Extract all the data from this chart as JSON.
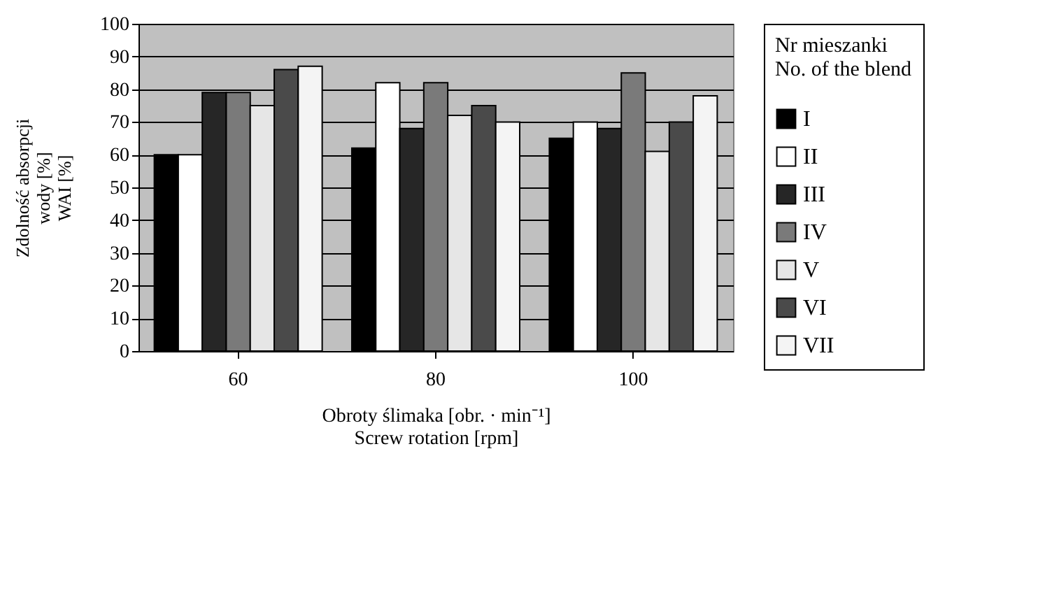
{
  "chart_data": {
    "type": "bar",
    "xlabel": "Obroty ślimaka [obr. · min⁻¹]\nScrew rotation [rpm]",
    "ylabel": "Zdolność absorpcji\nwody [%]\nWAI [%]",
    "legend_title": "Nr mieszanki\nNo. of the blend",
    "categories": [
      "60",
      "80",
      "100"
    ],
    "ylim": [
      0,
      100
    ],
    "yticks": [
      0,
      10,
      20,
      30,
      40,
      50,
      60,
      70,
      80,
      90,
      100
    ],
    "grid": "y",
    "legend": "right",
    "series": [
      {
        "name": "I",
        "color": "#000000",
        "values": [
          60,
          62,
          65
        ]
      },
      {
        "name": "II",
        "color": "#ffffff",
        "values": [
          60,
          82,
          70
        ]
      },
      {
        "name": "III",
        "color": "#262626",
        "values": [
          79,
          68,
          68
        ]
      },
      {
        "name": "IV",
        "color": "#7a7a7a",
        "values": [
          79,
          82,
          85
        ]
      },
      {
        "name": "V",
        "color": "#e6e6e6",
        "values": [
          75,
          72,
          61
        ]
      },
      {
        "name": "VI",
        "color": "#4a4a4a",
        "values": [
          86,
          75,
          70
        ]
      },
      {
        "name": "VII",
        "color": "#f4f4f4",
        "values": [
          87,
          70,
          78
        ]
      }
    ]
  }
}
